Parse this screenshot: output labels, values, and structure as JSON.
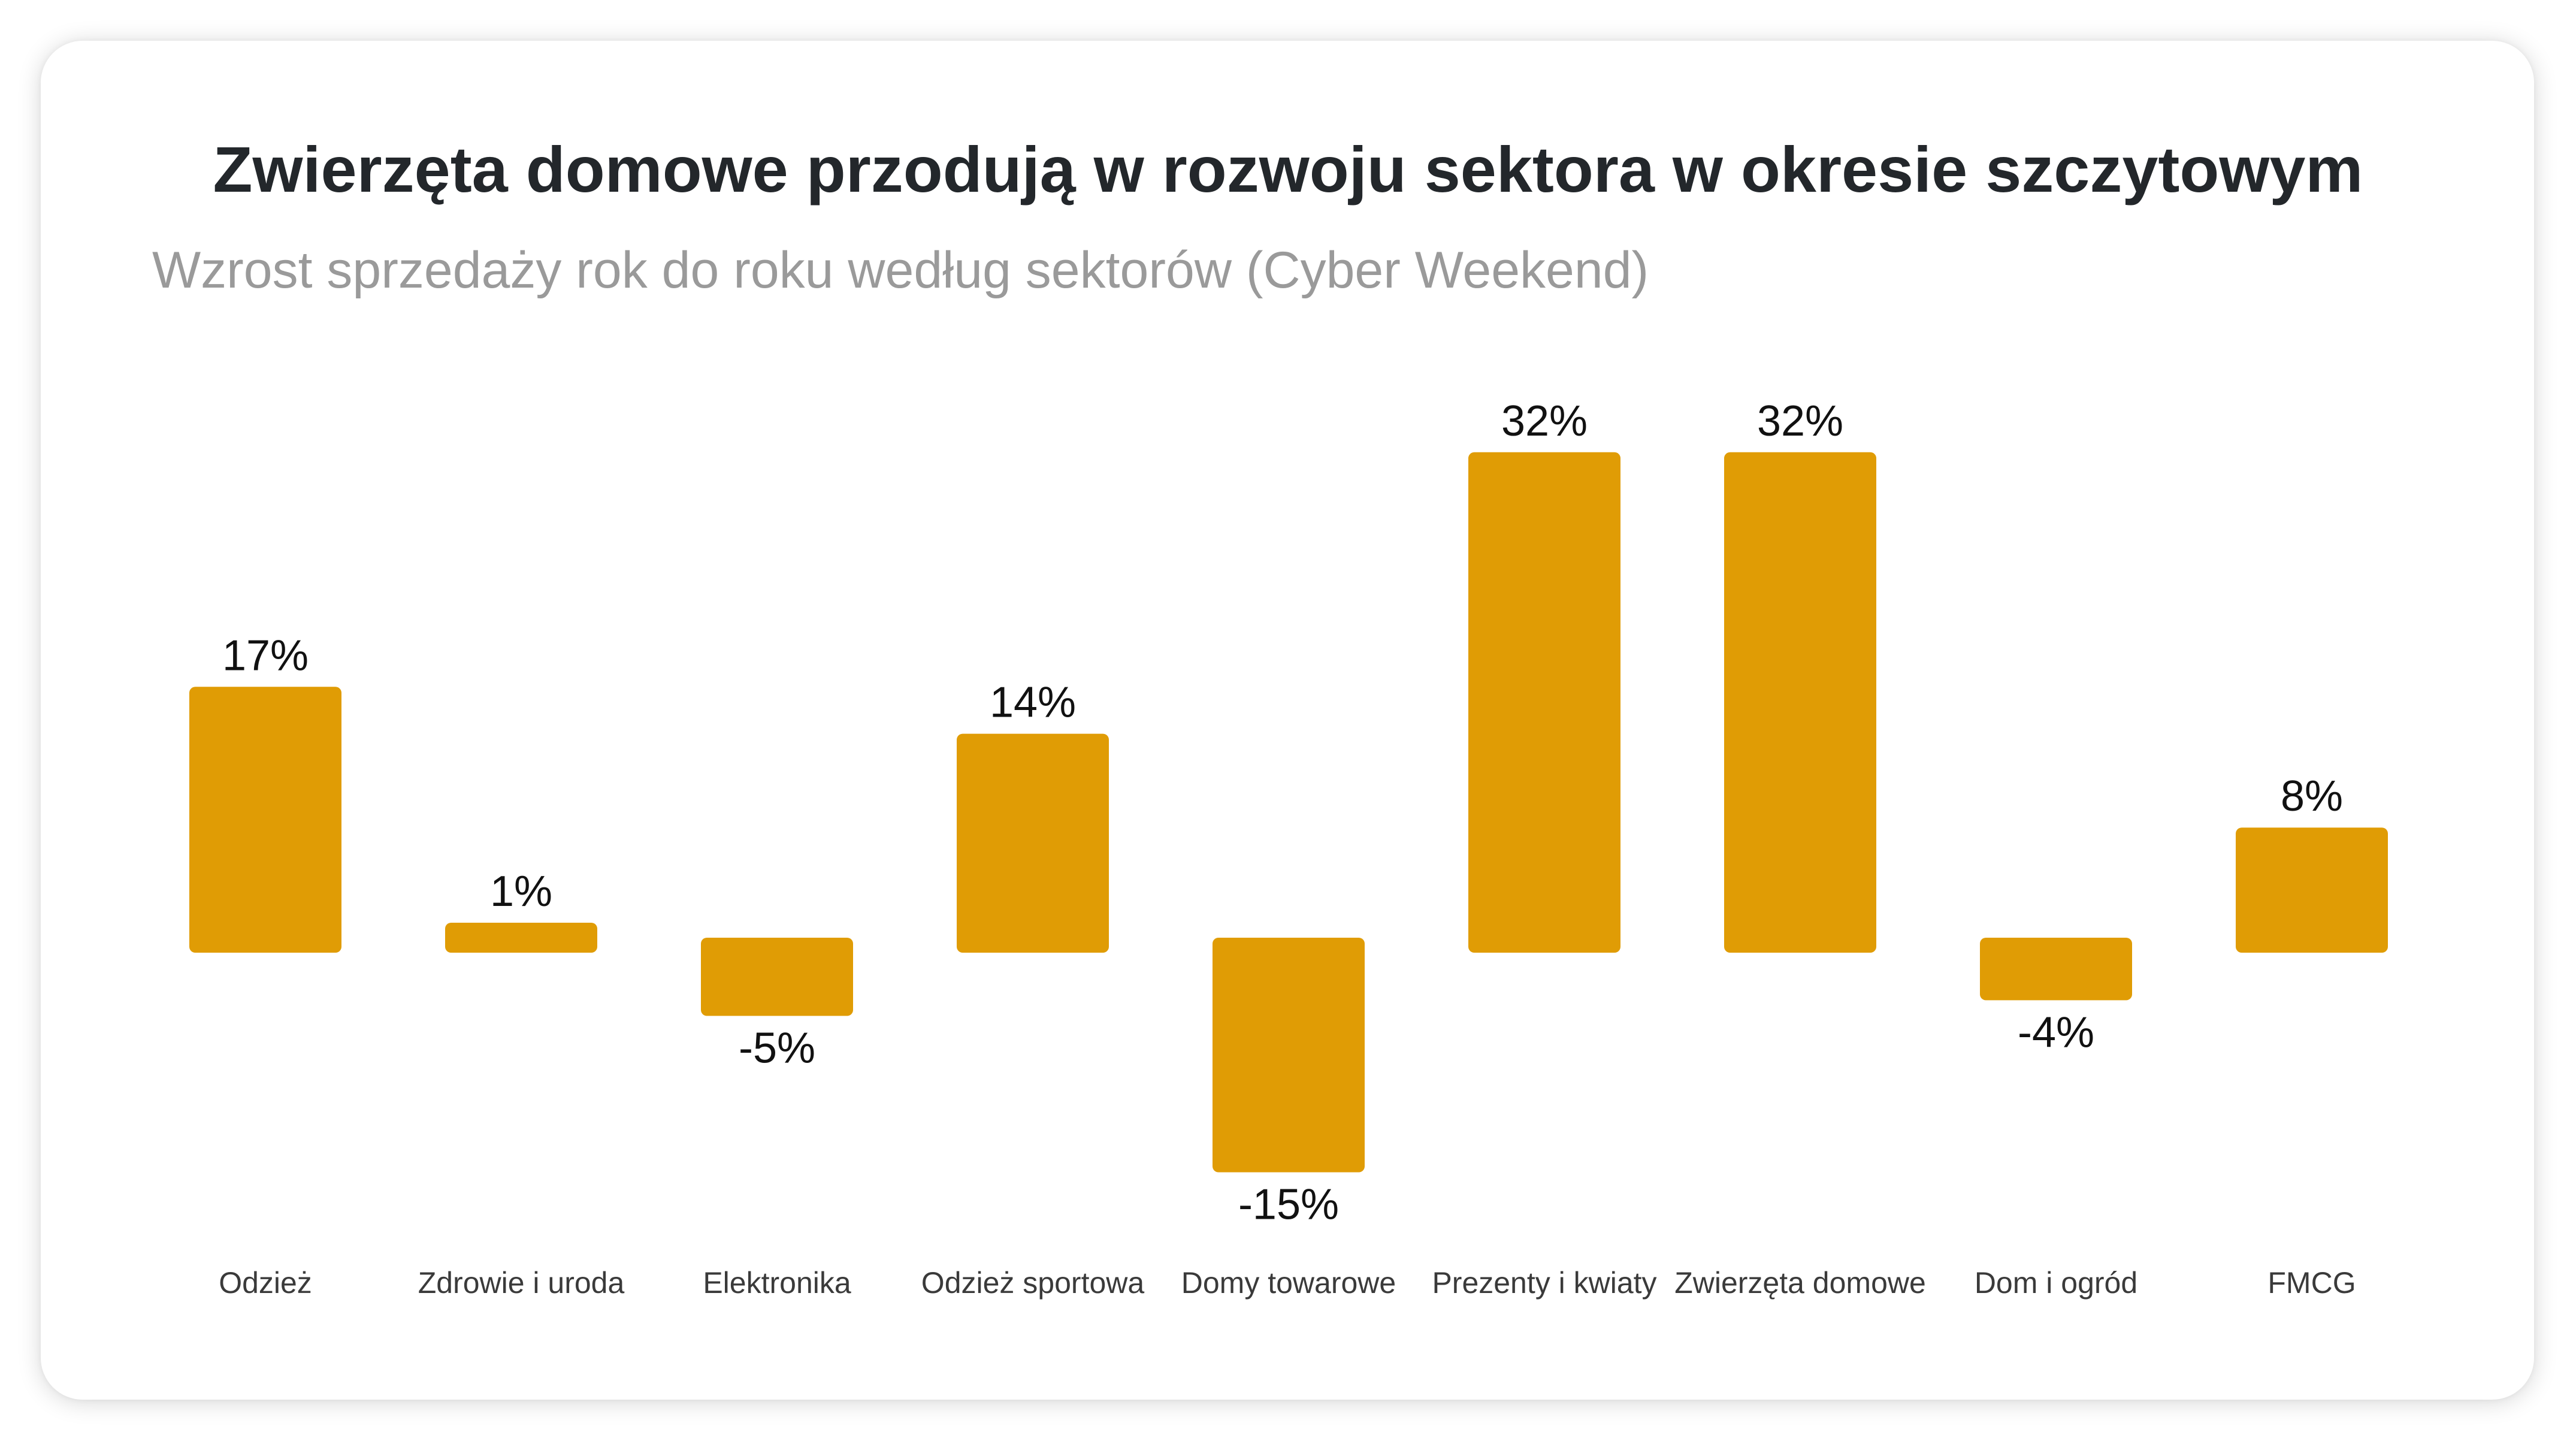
{
  "chart_data": {
    "type": "bar",
    "title": "Zwierzęta domowe przodują w rozwoju sektora w okresie szczytowym",
    "subtitle": "Wzrost sprzedaży rok do roku według sektorów (Cyber Weekend)",
    "categories": [
      "Odzież",
      "Zdrowie i uroda",
      "Elektronika",
      "Odzież sportowa",
      "Domy towarowe",
      "Prezenty i kwiaty",
      "Zwierzęta domowe",
      "Dom i ogród",
      "FMCG"
    ],
    "values": [
      17,
      1,
      -5,
      14,
      -15,
      32,
      32,
      -4,
      8
    ],
    "value_labels": [
      "17%",
      "1%",
      "-5%",
      "14%",
      "-15%",
      "32%",
      "32%",
      "-4%",
      "8%"
    ],
    "xlabel": "",
    "ylabel": "",
    "ylim": [
      -15,
      32
    ],
    "grid": false,
    "legend": "none",
    "bar_color": "#e09c05"
  }
}
